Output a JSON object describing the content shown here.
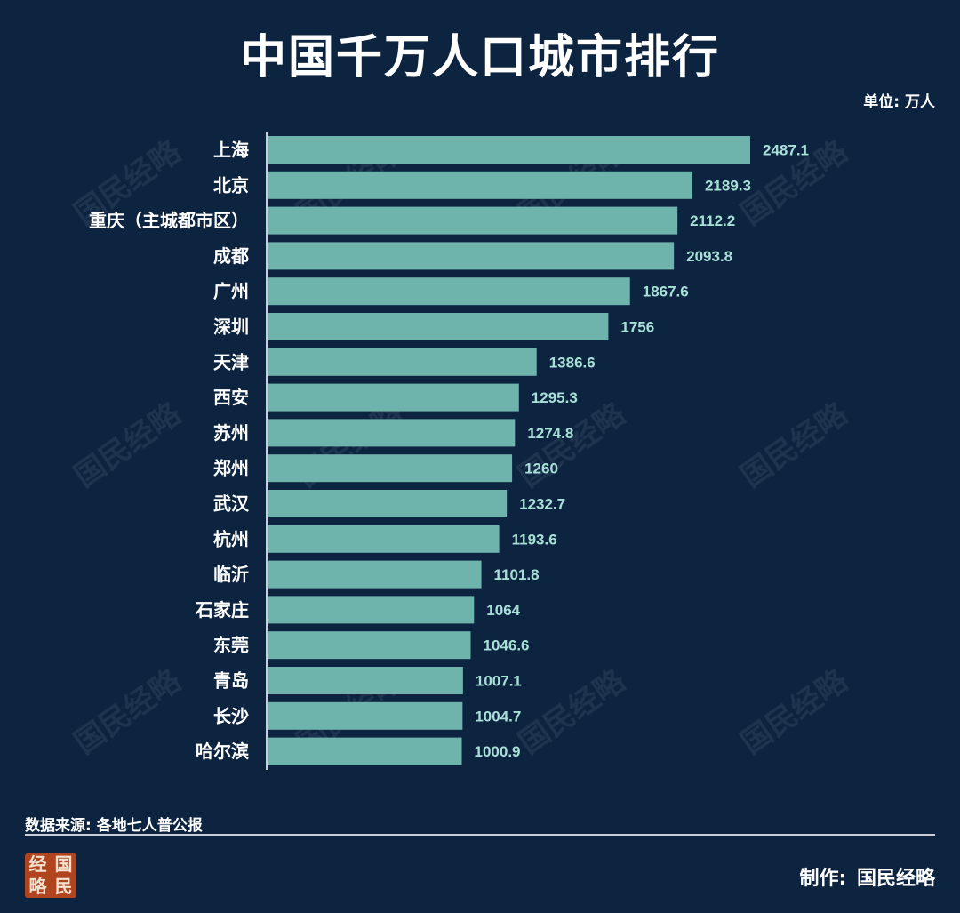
{
  "header": {
    "title": "中国千万人口城市排行",
    "unit": "单位: 万人"
  },
  "footer": {
    "source": "数据来源: 各地七人普公报",
    "maker_label": "制作:",
    "maker_name": "国民经略",
    "logo_chars": [
      "经",
      "国",
      "略",
      "民"
    ]
  },
  "watermark": "国民经略",
  "colors": {
    "background": "#0d2440",
    "bar": "#6fb3ad",
    "value_label": "#a8e0d8",
    "text": "#ffffff"
  },
  "chart_data": {
    "type": "bar",
    "orientation": "horizontal",
    "categories": [
      "上海",
      "北京",
      "重庆（主城都市区）",
      "成都",
      "广州",
      "深圳",
      "天津",
      "西安",
      "苏州",
      "郑州",
      "武汉",
      "杭州",
      "临沂",
      "石家庄",
      "东莞",
      "青岛",
      "长沙",
      "哈尔滨"
    ],
    "values": [
      2487.1,
      2189.3,
      2112.2,
      2093.8,
      1867.6,
      1756,
      1386.6,
      1295.3,
      1274.8,
      1260,
      1232.7,
      1193.6,
      1101.8,
      1064,
      1046.6,
      1007.1,
      1004.7,
      1000.9
    ],
    "value_labels": [
      "2487.1",
      "2189.3",
      "2112.2",
      "2093.8",
      "1867.6",
      "1756",
      "1386.6",
      "1295.3",
      "1274.8",
      "1260",
      "1232.7",
      "1193.6",
      "1101.8",
      "1064",
      "1046.6",
      "1007.1",
      "1004.7",
      "1000.9"
    ],
    "title": "中国千万人口城市排行",
    "xlabel": "",
    "ylabel": "",
    "xlim": [
      0,
      2487.1
    ],
    "grid": false,
    "legend": "none"
  }
}
